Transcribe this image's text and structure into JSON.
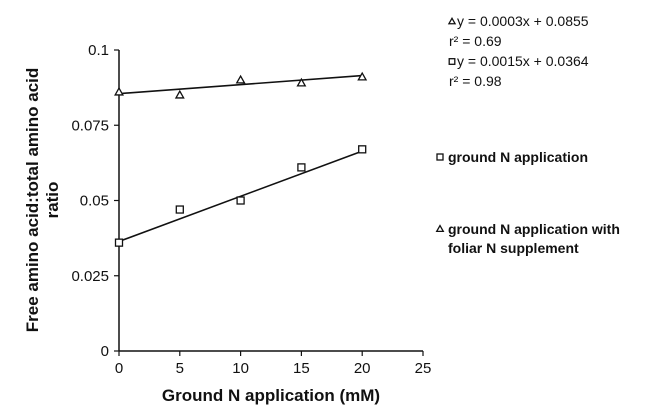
{
  "chart_data": {
    "type": "scatter",
    "xlabel": "Ground N application (mM)",
    "ylabel": [
      "Free amino acid:total amino acid",
      "ratio"
    ],
    "xlim": [
      0,
      25
    ],
    "ylim": [
      0,
      0.1
    ],
    "x_ticks": [
      "0",
      "5",
      "10",
      "15",
      "20",
      "25"
    ],
    "y_ticks": [
      "0",
      "0.025",
      "0.05",
      "0.075",
      "0.1"
    ],
    "grid": false,
    "legend_position": "right",
    "series": [
      {
        "name": "ground N application",
        "marker": "square",
        "points": [
          [
            0,
            0.036
          ],
          [
            5,
            0.047
          ],
          [
            10,
            0.05
          ],
          [
            15,
            0.061
          ],
          [
            20,
            0.067
          ]
        ],
        "fit": {
          "slope": 0.0015,
          "intercept": 0.0364,
          "x_range": [
            0,
            20
          ]
        }
      },
      {
        "name": "ground N application with foliar N supplement",
        "legend_lines": [
          "ground N application with",
          "foliar N supplement"
        ],
        "marker": "triangle",
        "points": [
          [
            0,
            0.086
          ],
          [
            5,
            0.085
          ],
          [
            10,
            0.09
          ],
          [
            15,
            0.089
          ],
          [
            20,
            0.091
          ]
        ],
        "fit": {
          "slope": 0.0003,
          "intercept": 0.0855,
          "x_range": [
            0,
            20
          ]
        }
      }
    ],
    "annotations": [
      {
        "marker": "triangle",
        "text": "y = 0.0003x + 0.0855"
      },
      {
        "marker": "none",
        "text": "r² = 0.69"
      },
      {
        "marker": "square",
        "text": "y = 0.0015x + 0.0364"
      },
      {
        "marker": "none",
        "text": "r² = 0.98"
      }
    ]
  }
}
